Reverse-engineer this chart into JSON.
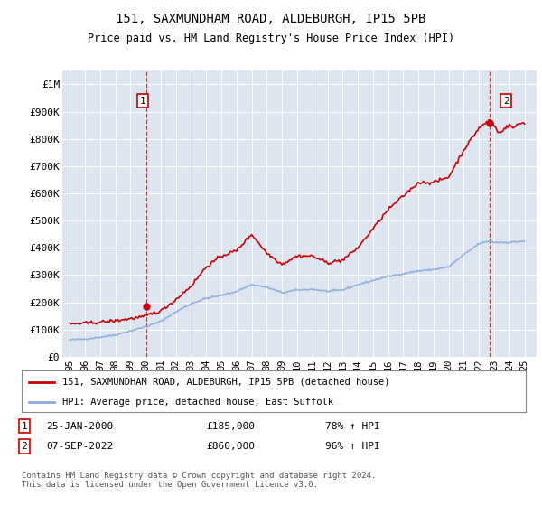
{
  "title1": "151, SAXMUNDHAM ROAD, ALDEBURGH, IP15 5PB",
  "title2": "Price paid vs. HM Land Registry's House Price Index (HPI)",
  "ylabel_ticks": [
    "£0",
    "£100K",
    "£200K",
    "£300K",
    "£400K",
    "£500K",
    "£600K",
    "£700K",
    "£800K",
    "£900K",
    "£1M"
  ],
  "ytick_values": [
    0,
    100000,
    200000,
    300000,
    400000,
    500000,
    600000,
    700000,
    800000,
    900000,
    1000000
  ],
  "ylim": [
    0,
    1050000
  ],
  "xlim_start": 1994.5,
  "xlim_end": 2025.8,
  "background_color": "#dde6f0",
  "grid_color": "#ffffff",
  "red_color": "#cc0000",
  "blue_color": "#88aadd",
  "sale1_x": 2000.07,
  "sale1_y": 185000,
  "sale2_x": 2022.69,
  "sale2_y": 860000,
  "legend_line1": "151, SAXMUNDHAM ROAD, ALDEBURGH, IP15 5PB (detached house)",
  "legend_line2": "HPI: Average price, detached house, East Suffolk",
  "footer": "Contains HM Land Registry data © Crown copyright and database right 2024.\nThis data is licensed under the Open Government Licence v3.0.",
  "xtick_years": [
    1995,
    1996,
    1997,
    1998,
    1999,
    2000,
    2001,
    2002,
    2003,
    2004,
    2005,
    2006,
    2007,
    2008,
    2009,
    2010,
    2011,
    2012,
    2013,
    2014,
    2015,
    2016,
    2017,
    2018,
    2019,
    2020,
    2021,
    2022,
    2023,
    2024,
    2025
  ],
  "xtick_labels": [
    "95",
    "96",
    "97",
    "98",
    "99",
    "00",
    "01",
    "02",
    "03",
    "04",
    "05",
    "06",
    "07",
    "08",
    "09",
    "10",
    "11",
    "12",
    "13",
    "14",
    "15",
    "16",
    "17",
    "18",
    "19",
    "20",
    "21",
    "22",
    "23",
    "24",
    "25"
  ]
}
